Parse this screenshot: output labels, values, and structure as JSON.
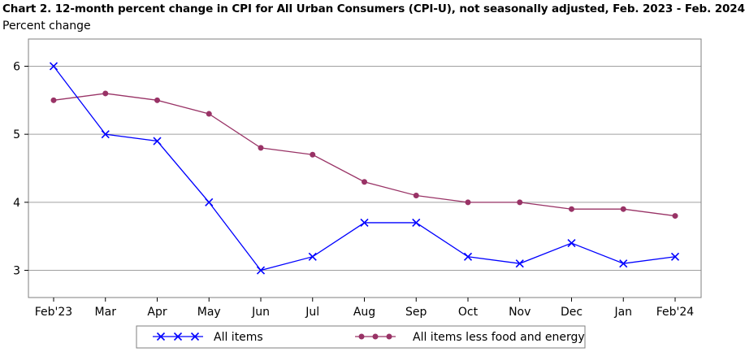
{
  "chart_data": {
    "type": "line",
    "title": "Chart 2. 12-month percent change in CPI for All Urban Consumers (CPI-U), not seasonally adjusted, Feb. 2023 - Feb. 2024",
    "subtitle": "Percent change",
    "categories": [
      "Feb'23",
      "Mar",
      "Apr",
      "May",
      "Jun",
      "Jul",
      "Aug",
      "Sep",
      "Oct",
      "Nov",
      "Dec",
      "Jan",
      "Feb'24"
    ],
    "ylim": [
      2.6,
      6.4
    ],
    "yticks": [
      "3",
      "4",
      "5",
      "6"
    ],
    "grid": true,
    "legend_position": "bottom",
    "series": [
      {
        "name": "All items",
        "color": "#0000ff",
        "marker": "x",
        "values": [
          6.0,
          5.0,
          4.9,
          4.0,
          3.0,
          3.2,
          3.7,
          3.7,
          3.2,
          3.1,
          3.4,
          3.1,
          3.2
        ]
      },
      {
        "name": "All items less food and energy",
        "color": "#993366",
        "marker": "circle",
        "values": [
          5.5,
          5.6,
          5.5,
          5.3,
          4.8,
          4.7,
          4.3,
          4.1,
          4.0,
          4.0,
          3.9,
          3.9,
          3.8
        ]
      }
    ]
  }
}
